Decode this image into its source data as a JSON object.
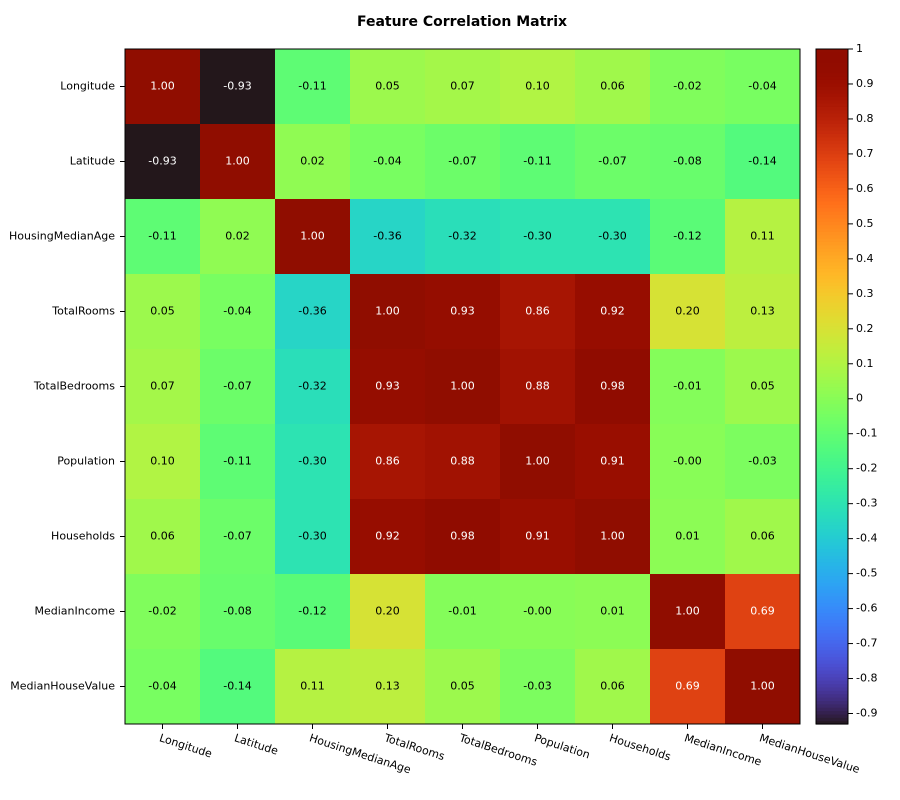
{
  "chart_data": {
    "type": "heatmap",
    "title": "Feature Correlation Matrix",
    "categories": [
      "Longitude",
      "Latitude",
      "HousingMedianAge",
      "TotalRooms",
      "TotalBedrooms",
      "Population",
      "Households",
      "MedianIncome",
      "MedianHouseValue"
    ],
    "values": [
      [
        1,
        -0.93,
        -0.11,
        0.05,
        0.07,
        0.1,
        0.06,
        -0.02,
        -0.04
      ],
      [
        -0.93,
        1,
        0.02,
        -0.04,
        -0.07,
        -0.11,
        -0.07,
        -0.08,
        -0.14
      ],
      [
        -0.11,
        0.02,
        1,
        -0.36,
        -0.32,
        -0.3,
        -0.3,
        -0.12,
        0.11
      ],
      [
        0.05,
        -0.04,
        -0.36,
        1,
        0.93,
        0.86,
        0.92,
        0.2,
        0.13
      ],
      [
        0.07,
        -0.07,
        -0.32,
        0.93,
        1,
        0.88,
        0.98,
        -0.01,
        0.05
      ],
      [
        0.1,
        -0.11,
        -0.3,
        0.86,
        0.88,
        1,
        0.91,
        0,
        -0.03
      ],
      [
        0.06,
        -0.07,
        -0.3,
        0.92,
        0.98,
        0.91,
        1,
        0.01,
        0.06
      ],
      [
        -0.02,
        -0.08,
        -0.12,
        0.2,
        -0.01,
        0,
        0.01,
        1,
        0.69
      ],
      [
        -0.04,
        -0.14,
        0.11,
        0.13,
        0.05,
        -0.03,
        0.06,
        0.69,
        1
      ]
    ],
    "value_labels": [
      [
        "1.00",
        "-0.93",
        "-0.11",
        "0.05",
        "0.07",
        "0.10",
        "0.06",
        "-0.02",
        "-0.04"
      ],
      [
        "-0.93",
        "1.00",
        "0.02",
        "-0.04",
        "-0.07",
        "-0.11",
        "-0.07",
        "-0.08",
        "-0.14"
      ],
      [
        "-0.11",
        "0.02",
        "1.00",
        "-0.36",
        "-0.32",
        "-0.30",
        "-0.30",
        "-0.12",
        "0.11"
      ],
      [
        "0.05",
        "-0.04",
        "-0.36",
        "1.00",
        "0.93",
        "0.86",
        "0.92",
        "0.20",
        "0.13"
      ],
      [
        "0.07",
        "-0.07",
        "-0.32",
        "0.93",
        "1.00",
        "0.88",
        "0.98",
        "-0.01",
        "0.05"
      ],
      [
        "0.10",
        "-0.11",
        "-0.30",
        "0.86",
        "0.88",
        "1.00",
        "0.91",
        "-0.00",
        "-0.03"
      ],
      [
        "0.06",
        "-0.07",
        "-0.30",
        "0.92",
        "0.98",
        "0.91",
        "1.00",
        "0.01",
        "0.06"
      ],
      [
        "-0.02",
        "-0.08",
        "-0.12",
        "0.20",
        "-0.01",
        "-0.00",
        "0.01",
        "1.00",
        "0.69"
      ],
      [
        "-0.04",
        "-0.14",
        "0.11",
        "0.13",
        "0.05",
        "-0.03",
        "0.06",
        "0.69",
        "1.00"
      ]
    ],
    "colormap": "turbo",
    "clim": [
      -0.93,
      1
    ],
    "cticks": [
      -0.9,
      -0.8,
      -0.7,
      -0.6,
      -0.5,
      -0.4,
      -0.3,
      -0.2,
      -0.1,
      0,
      0.1,
      0.2,
      0.3,
      0.4,
      0.5,
      0.6,
      0.7,
      0.8,
      0.9,
      1
    ]
  }
}
